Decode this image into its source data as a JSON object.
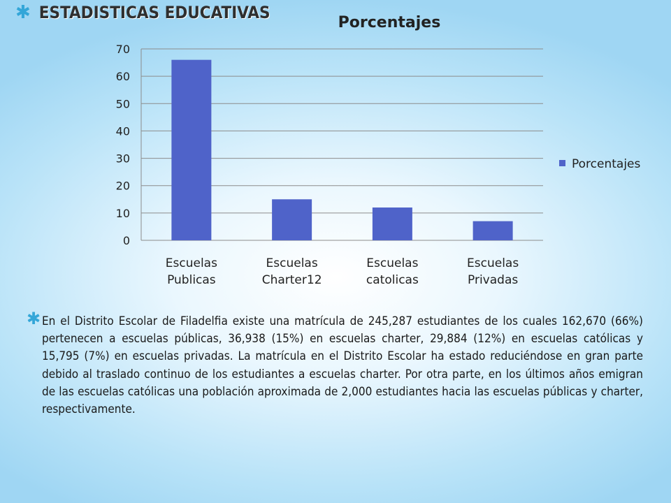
{
  "slide": {
    "title": "ESTADISTICAS EDUCATIVAS",
    "bullet_icon": "star-bullet",
    "accent_color": "#33a6d8",
    "paragraph": "En el Distrito Escolar de Filadelfia existe una matrícula de 245,287 estudiantes de los cuales 162,670 (66%) pertenecen a escuelas públicas, 36,938 (15%) en escuelas charter, 29,884 (12%) en escuelas católicas y 15,795 (7%) en escuelas privadas. La matrícula en el Distrito Escolar ha estado reduciéndose en gran parte debido al traslado continuo de los estudiantes a escuelas charter.  Por otra parte, en los últimos años emigran de las escuelas católicas una población aproximada de 2,000 estudiantes hacia las escuelas públicas y charter, respectivamente."
  },
  "chart_data": {
    "type": "bar",
    "title": "Porcentajes",
    "categories": [
      [
        "Escuelas",
        "Publicas"
      ],
      [
        "Escuelas",
        "Charter12"
      ],
      [
        "Escuelas",
        "catolicas"
      ],
      [
        "Escuelas",
        "Privadas"
      ]
    ],
    "series": [
      {
        "name": "Porcentajes",
        "values": [
          66,
          15,
          12,
          7
        ],
        "color": "#4f63c9"
      }
    ],
    "ylim": [
      0,
      70
    ],
    "yticks": [
      0,
      10,
      20,
      30,
      40,
      50,
      60,
      70
    ],
    "grid": true,
    "legend": "right"
  }
}
